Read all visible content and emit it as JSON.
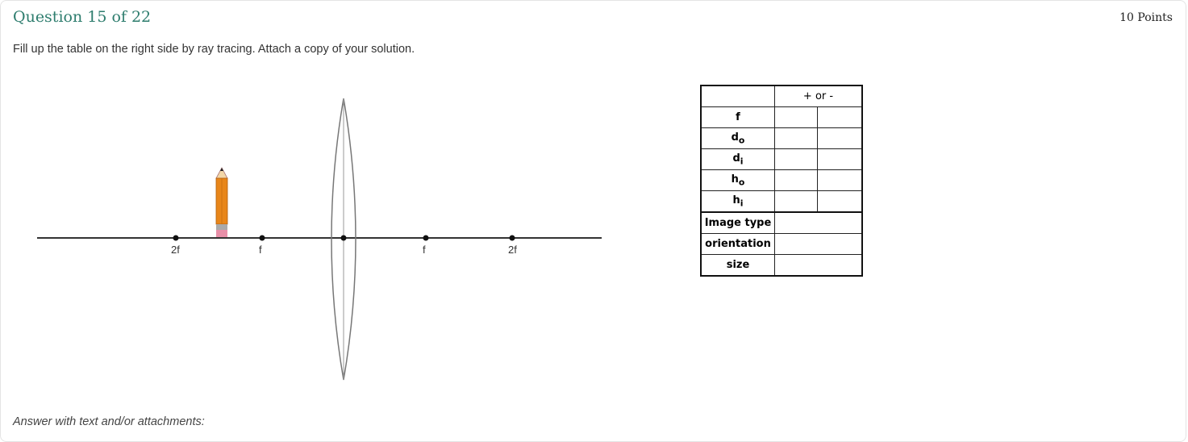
{
  "question": {
    "title": "Question 15 of 22",
    "points": "10 Points",
    "prompt": "Fill up the table on the right side by ray tracing. Attach a copy of your solution.",
    "answer_label": "Answer with text and/or attachments:"
  },
  "diagram": {
    "labels": {
      "left_2f": "2f",
      "left_f": "f",
      "right_f": "f",
      "right_2f": "2f"
    }
  },
  "table": {
    "header": "+ or -",
    "rows": [
      {
        "base": "f",
        "sub": ""
      },
      {
        "base": "d",
        "sub": "o"
      },
      {
        "base": "d",
        "sub": "i"
      },
      {
        "base": "h",
        "sub": "o"
      },
      {
        "base": "h",
        "sub": "i"
      }
    ],
    "props": [
      "Image type",
      "orientation",
      "size"
    ]
  }
}
